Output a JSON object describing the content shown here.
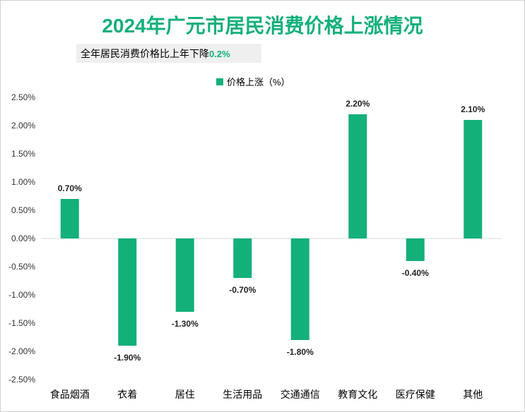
{
  "header": {
    "title": "2024年广元市居民消费价格上涨情况",
    "subtitle_prefix": "全年居民消费价格比上年下降",
    "subtitle_value": "0.2%"
  },
  "colors": {
    "accent": "#13b07a",
    "bar": "#13b07a"
  },
  "chart_data": {
    "type": "bar",
    "title": "2024年广元市居民消费价格上涨情况",
    "categories": [
      "食品烟酒",
      "衣着",
      "居住",
      "生活用品",
      "交通通信",
      "教育文化",
      "医疗保健",
      "其他"
    ],
    "series": [
      {
        "name": "价格上涨（%）",
        "values": [
          0.7,
          -1.9,
          -1.3,
          -0.7,
          -1.8,
          2.2,
          -0.4,
          2.1
        ]
      }
    ],
    "data_labels": [
      "0.70%",
      "-1.90%",
      "-1.30%",
      "-0.70%",
      "-1.80%",
      "2.20%",
      "-0.40%",
      "2.10%"
    ],
    "ylim": [
      -2.5,
      2.5
    ],
    "yticks": [
      2.5,
      2.0,
      1.5,
      1.0,
      0.5,
      0.0,
      -0.5,
      -1.0,
      -1.5,
      -2.0,
      -2.5
    ],
    "ytick_labels": [
      "2.50%",
      "2.00%",
      "1.50%",
      "1.00%",
      "0.50%",
      "0.00%",
      "-0.50%",
      "-1.00%",
      "-1.50%",
      "-2.00%",
      "-2.50%"
    ],
    "grid": false,
    "legend_position": "top-center"
  }
}
